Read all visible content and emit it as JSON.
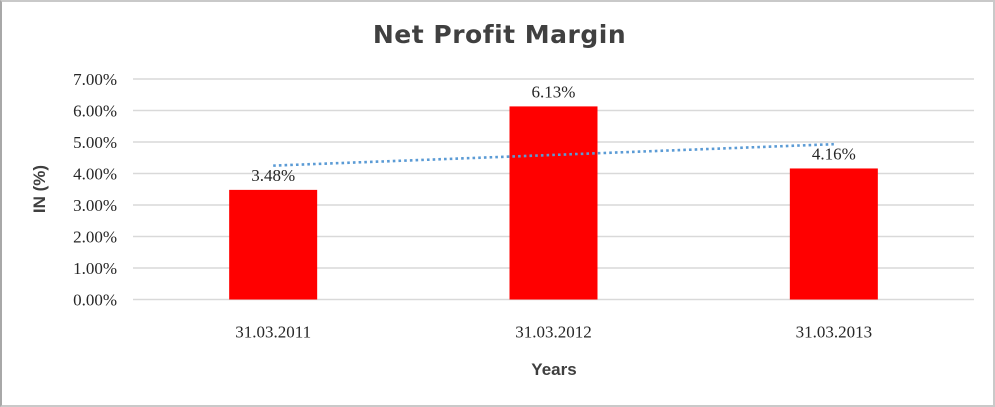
{
  "chart_data": {
    "type": "bar",
    "title": "Net Profit Margin",
    "xlabel": "Years",
    "ylabel": "IN (%)",
    "categories": [
      "31.03.2011",
      "31.03.2012",
      "31.03.2013"
    ],
    "values": [
      3.48,
      6.13,
      4.16
    ],
    "data_labels": [
      "3.48%",
      "6.13%",
      "4.16%"
    ],
    "ylim": [
      0,
      7
    ],
    "ytick_labels": [
      "0.00%",
      "1.00%",
      "2.00%",
      "3.00%",
      "4.00%",
      "5.00%",
      "6.00%",
      "7.00%"
    ],
    "grid": true,
    "legend": false,
    "bar_color": "#FF0000",
    "gridline_color": "#D9D9D9",
    "title_color": "#404040",
    "axis_title_color": "#3F3F3F",
    "label_color": "#262626",
    "trendline": {
      "type": "linear",
      "style": "dotted",
      "color": "#5B9BD5",
      "start_value": 4.25,
      "end_value": 4.93
    }
  }
}
